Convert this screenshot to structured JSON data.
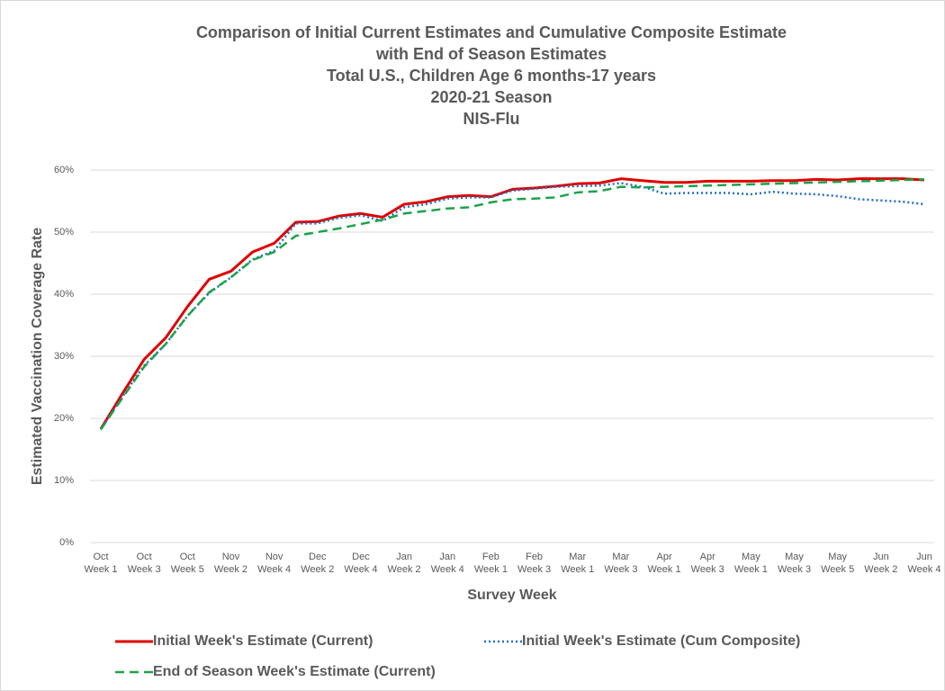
{
  "chart_data": {
    "type": "line",
    "title": [
      "Comparison of Initial Current Estimates and Cumulative Composite Estimate",
      "with End of Season Estimates",
      "Total U.S., Children Age 6 months-17 years",
      "2020-21 Season",
      "NIS-Flu"
    ],
    "x_label": "Survey Week",
    "y_label": "Estimated Vaccination Coverage Rate",
    "categories": [
      "Oct Week 1",
      null,
      "Oct Week 3",
      null,
      "Oct Week 5",
      null,
      "Nov Week 2",
      null,
      "Nov Week 4",
      null,
      "Dec Week 2",
      null,
      "Dec Week 4",
      null,
      "Jan Week 2",
      null,
      "Jan Week 4",
      null,
      "Feb Week 1",
      null,
      "Feb Week 3",
      null,
      "Mar Week 1",
      null,
      "Mar Week 3",
      null,
      "Apr Week 1",
      null,
      "Apr Week 3",
      null,
      "May Week 1",
      null,
      "May Week 3",
      null,
      "May Week 5",
      null,
      "Jun Week 2",
      null,
      "Jun Week 4"
    ],
    "series": [
      {
        "name": "Initial Week's Estimate (Current)",
        "color": "#e00000",
        "dash": "solid",
        "values": [
          18.3,
          24,
          29.5,
          33,
          38,
          42.4,
          43.7,
          46.8,
          48.2,
          51.6,
          51.7,
          52.6,
          53,
          52.4,
          54.5,
          54.9,
          55.7,
          55.9,
          55.7,
          56.9,
          57.1,
          57.4,
          57.8,
          57.9,
          58.6,
          58.3,
          58,
          58,
          58.2,
          58.2,
          58.2,
          58.3,
          58.3,
          58.5,
          58.4,
          58.6,
          58.6,
          58.6,
          58.4
        ]
      },
      {
        "name": "Initial Week's Estimate (Cum Composite)",
        "color": "#1f6fbf",
        "dash": "dotted",
        "values": [
          18.3,
          23.5,
          28.5,
          32,
          36.5,
          40.2,
          42.7,
          45.6,
          47,
          51.4,
          51.4,
          52.3,
          52.7,
          51.8,
          54,
          54.5,
          55.4,
          55.6,
          55.6,
          56.7,
          57,
          57.3,
          57.4,
          57.5,
          57.9,
          57.3,
          56.2,
          56.3,
          56.3,
          56.3,
          56.1,
          56.5,
          56.2,
          56.1,
          55.8,
          55.3,
          55.1,
          54.9,
          54.5
        ]
      },
      {
        "name": "End of Season Week's Estimate (Current)",
        "color": "#1aa34a",
        "dash": "dashed",
        "values": [
          18.2,
          23.3,
          28.3,
          32,
          36.5,
          40.3,
          42.7,
          45.5,
          46.8,
          49.4,
          50,
          50.6,
          51.3,
          52,
          53,
          53.4,
          53.8,
          54,
          54.8,
          55.3,
          55.4,
          55.6,
          56.4,
          56.6,
          57.3,
          57.2,
          57.3,
          57.4,
          57.5,
          57.6,
          57.7,
          57.8,
          57.9,
          58,
          58.1,
          58.2,
          58.3,
          58.4,
          58.5
        ]
      }
    ],
    "ylim": [
      0,
      60
    ],
    "yticks": [
      {
        "value": 0,
        "label": "0%"
      },
      {
        "value": 10,
        "label": "10%"
      },
      {
        "value": 20,
        "label": "20%"
      },
      {
        "value": 30,
        "label": "30%"
      },
      {
        "value": 40,
        "label": "40%"
      },
      {
        "value": 50,
        "label": "50%"
      },
      {
        "value": 60,
        "label": "60%"
      }
    ],
    "grid": true
  }
}
